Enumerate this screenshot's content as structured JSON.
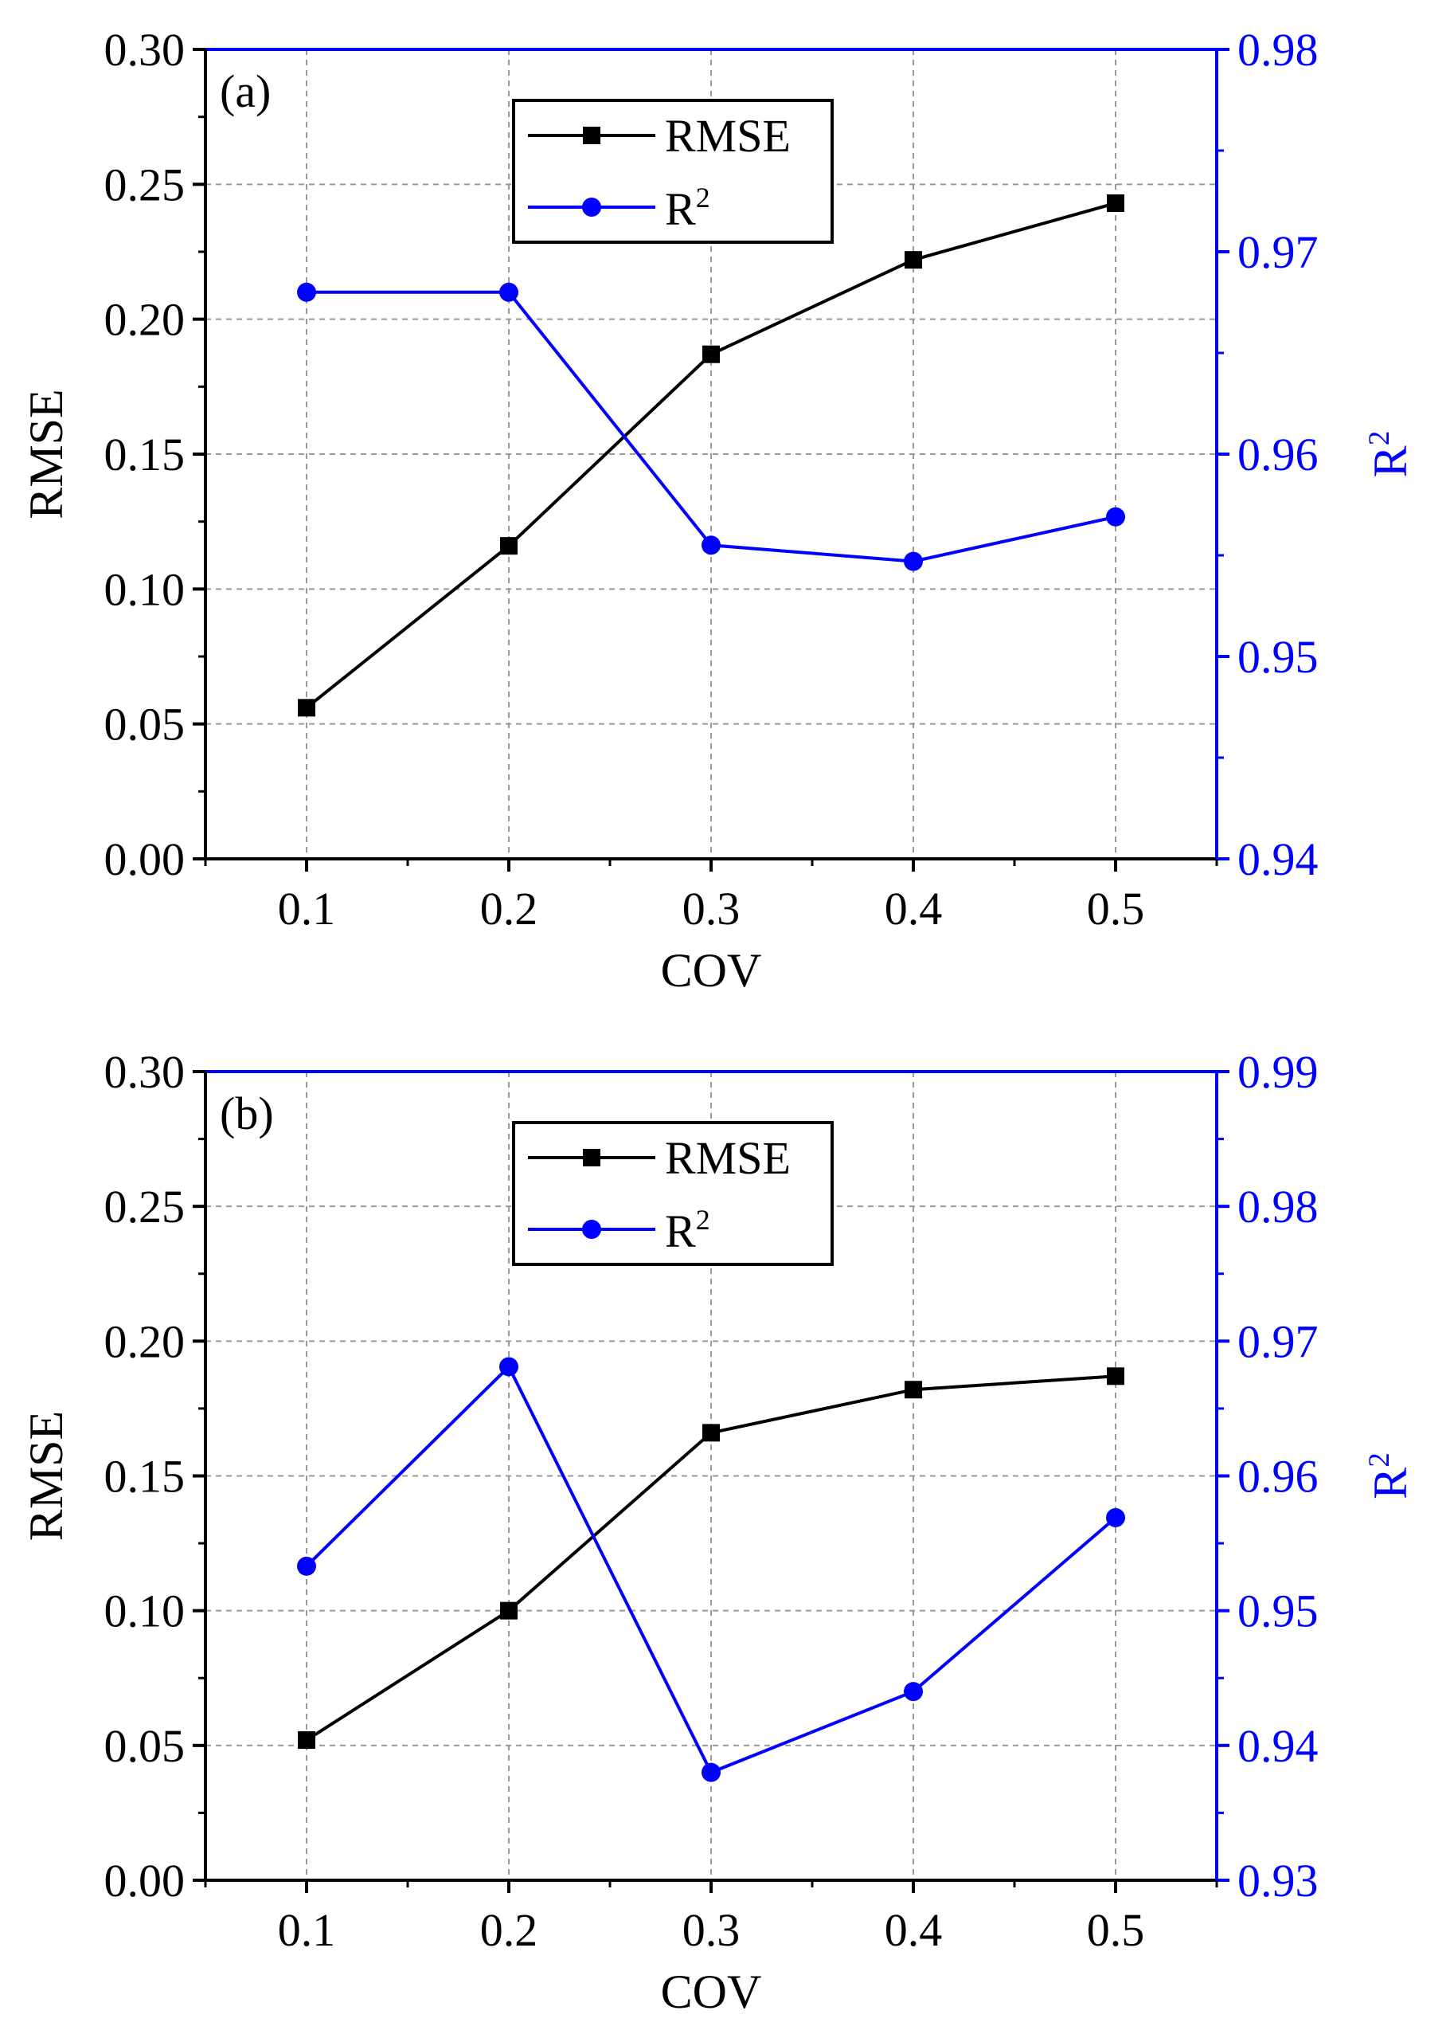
{
  "chart_data": [
    {
      "type": "line",
      "panel_label": "(a)",
      "x": [
        0.1,
        0.2,
        0.3,
        0.4,
        0.5
      ],
      "x_tick_labels": [
        "0.1",
        "0.2",
        "0.3",
        "0.4",
        "0.5"
      ],
      "xlabel": "COV",
      "xlim": [
        0.05,
        0.55
      ],
      "grid": true,
      "legend_position": "top-center",
      "series": [
        {
          "name": "RMSE",
          "axis": "left",
          "color": "#000000",
          "marker": "square",
          "values": [
            0.056,
            0.116,
            0.187,
            0.222,
            0.243
          ]
        },
        {
          "name": "R",
          "name_superscript": "2",
          "axis": "right",
          "color": "#0000ff",
          "marker": "circle",
          "values": [
            0.968,
            0.968,
            0.9555,
            0.9547,
            0.9569
          ]
        }
      ],
      "left_axis": {
        "label": "RMSE",
        "ylim": [
          0.0,
          0.3
        ],
        "ticks": [
          0.0,
          0.05,
          0.1,
          0.15,
          0.2,
          0.25,
          0.3
        ],
        "tick_labels": [
          "0.00",
          "0.05",
          "0.10",
          "0.15",
          "0.20",
          "0.25",
          "0.30"
        ]
      },
      "right_axis": {
        "label": "R",
        "label_superscript": "2",
        "ylim": [
          0.94,
          0.98
        ],
        "ticks": [
          0.94,
          0.95,
          0.96,
          0.97,
          0.98
        ],
        "tick_labels": [
          "0.94",
          "0.95",
          "0.96",
          "0.97",
          "0.98"
        ]
      }
    },
    {
      "type": "line",
      "panel_label": "(b)",
      "x": [
        0.1,
        0.2,
        0.3,
        0.4,
        0.5
      ],
      "x_tick_labels": [
        "0.1",
        "0.2",
        "0.3",
        "0.4",
        "0.5"
      ],
      "xlabel": "COV",
      "xlim": [
        0.05,
        0.55
      ],
      "grid": true,
      "legend_position": "top-center",
      "series": [
        {
          "name": "RMSE",
          "axis": "left",
          "color": "#000000",
          "marker": "square",
          "values": [
            0.052,
            0.1,
            0.166,
            0.182,
            0.187
          ]
        },
        {
          "name": "R",
          "name_superscript": "2",
          "axis": "right",
          "color": "#0000ff",
          "marker": "circle",
          "values": [
            0.9533,
            0.9681,
            0.938,
            0.944,
            0.9569
          ]
        }
      ],
      "left_axis": {
        "label": "RMSE",
        "ylim": [
          0.0,
          0.3
        ],
        "ticks": [
          0.0,
          0.05,
          0.1,
          0.15,
          0.2,
          0.25,
          0.3
        ],
        "tick_labels": [
          "0.00",
          "0.05",
          "0.10",
          "0.15",
          "0.20",
          "0.25",
          "0.30"
        ]
      },
      "right_axis": {
        "label": "R",
        "label_superscript": "2",
        "ylim": [
          0.93,
          0.99
        ],
        "ticks": [
          0.93,
          0.94,
          0.95,
          0.96,
          0.97,
          0.98,
          0.99
        ],
        "tick_labels": [
          "0.93",
          "0.94",
          "0.95",
          "0.96",
          "0.97",
          "0.98",
          "0.99"
        ]
      }
    }
  ]
}
